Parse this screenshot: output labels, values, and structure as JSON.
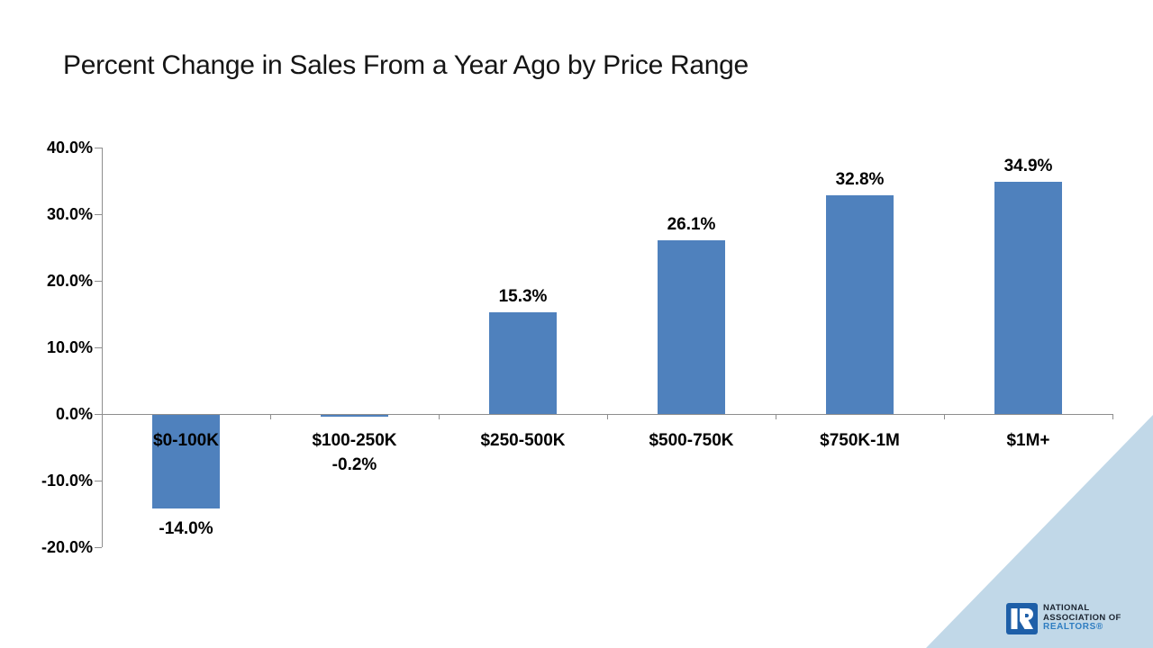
{
  "slide": {
    "title": "Percent Change in Sales From a Year Ago by Price Range"
  },
  "chart_data": {
    "type": "bar",
    "title": "Percent Change in Sales From a Year Ago by Price Range",
    "categories": [
      "$0-100K",
      "$100-250K",
      "$250-500K",
      "$500-750K",
      "$750K-1M",
      "$1M+"
    ],
    "values": [
      -14.0,
      -0.2,
      15.3,
      26.1,
      32.8,
      34.9
    ],
    "value_labels": [
      "-14.0%",
      "-0.2%",
      "15.3%",
      "26.1%",
      "32.8%",
      "34.9%"
    ],
    "xlabel": "",
    "ylabel": "",
    "ylim": [
      -20,
      40
    ],
    "ytick_step": 10,
    "ytick_labels": [
      "40.0%",
      "30.0%",
      "20.0%",
      "10.0%",
      "0.0%",
      "-10.0%",
      "-20.0%"
    ],
    "grid": false,
    "legend": "none",
    "bar_color": "#4F81BD",
    "axis_color": "#8E8E8E",
    "label_color": "#000000"
  },
  "branding": {
    "corner_triangle_color": "#C1D8E8",
    "logo": {
      "icon": "nar-realtor-r-icon",
      "block_color": "#1E5FA8",
      "line1": "NATIONAL",
      "line2": "ASSOCIATION OF",
      "line3": "REALTORS®",
      "line1_color": "#1B2430",
      "line3_color": "#2F7DC1"
    }
  }
}
